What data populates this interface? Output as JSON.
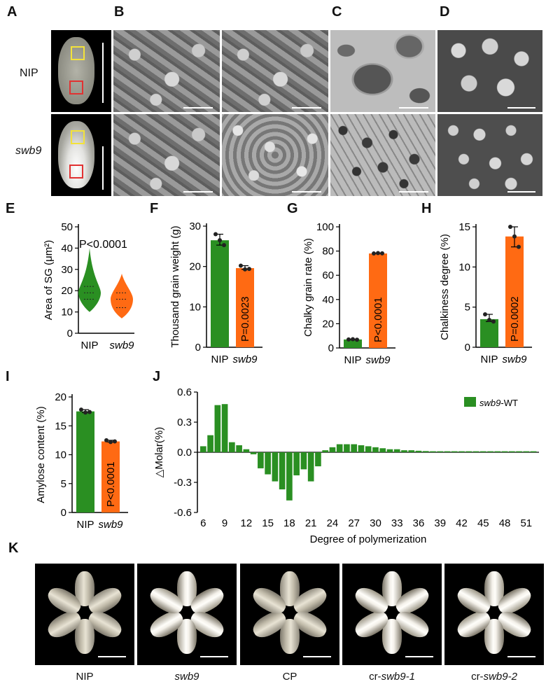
{
  "panel_labels": {
    "A": "A",
    "B": "B",
    "C": "C",
    "D": "D",
    "E": "E",
    "F": "F",
    "G": "G",
    "H": "H",
    "I": "I",
    "J": "J",
    "K": "K"
  },
  "row_labels": {
    "nip": "NIP",
    "swb9": "swb9"
  },
  "colors": {
    "nip_green": "#2a8f22",
    "swb9_orange": "#ff6a13",
    "bar_green": "#2a8f22"
  },
  "panel_E": {
    "ylabel": "Area of SG (μm²)",
    "p_text": "P<0.0001",
    "categories": [
      "NIP",
      "swb9"
    ],
    "ticks": [
      "0",
      "10",
      "20",
      "30",
      "40",
      "50"
    ]
  },
  "chart_data": [
    {
      "panel": "E",
      "type": "violin",
      "ylabel": "Area of SG (μm²)",
      "ylim": [
        0,
        50
      ],
      "categories": [
        "NIP",
        "swb9"
      ],
      "series": [
        {
          "name": "NIP",
          "median": 19,
          "q1": 16,
          "q3": 22,
          "min": 10,
          "max": 40
        },
        {
          "name": "swb9",
          "median": 16,
          "q1": 12,
          "q3": 19,
          "min": 7,
          "max": 28
        }
      ],
      "annotation": "P<0.0001"
    },
    {
      "panel": "F",
      "type": "bar",
      "ylabel": "Thousand grain weight (g)",
      "ylim": [
        0,
        30
      ],
      "categories": [
        "NIP",
        "swb9"
      ],
      "values": [
        26.5,
        19.6
      ],
      "points": [
        [
          28,
          26.5,
          25.3
        ],
        [
          20.2,
          19.3,
          19.4
        ]
      ],
      "annotation": "P=0.0023"
    },
    {
      "panel": "G",
      "type": "bar",
      "ylabel": "Chalky grain rate (%)",
      "ylim": [
        0,
        100
      ],
      "categories": [
        "NIP",
        "swb9"
      ],
      "values": [
        7,
        78
      ],
      "points": [
        [
          7,
          7.2,
          6.8
        ],
        [
          78,
          78.3,
          78.1
        ]
      ],
      "annotation": "P<0.0001"
    },
    {
      "panel": "H",
      "type": "bar",
      "ylabel": "Chalkiness degree (%)",
      "ylim": [
        0,
        15
      ],
      "categories": [
        "NIP",
        "swb9"
      ],
      "values": [
        3.5,
        13.8
      ],
      "points": [
        [
          4.1,
          3.4,
          3.2
        ],
        [
          15,
          13.8,
          12.5
        ]
      ],
      "annotation": "P=0.0002"
    },
    {
      "panel": "I",
      "type": "bar",
      "ylabel": "Amylose  content (%)",
      "ylim": [
        0,
        20
      ],
      "categories": [
        "NIP",
        "swb9"
      ],
      "values": [
        17.5,
        12.3
      ],
      "points": [
        [
          17.8,
          17.3,
          17.4
        ],
        [
          12.5,
          12.2,
          12.3
        ]
      ],
      "annotation": "P<0.0001"
    },
    {
      "panel": "J",
      "type": "bar",
      "ylabel": "△Molar(%)",
      "xlabel": "Degree of polymerization",
      "ylim": [
        -0.6,
        0.6
      ],
      "yticks": [
        "0.6",
        "0.3",
        "0.0",
        "-0.3",
        "-0.6"
      ],
      "xticks": [
        "6",
        "9",
        "12",
        "15",
        "18",
        "21",
        "24",
        "27",
        "30",
        "33",
        "36",
        "39",
        "42",
        "45",
        "48",
        "51"
      ],
      "legend": "swb9-WT",
      "x": [
        6,
        7,
        8,
        9,
        10,
        11,
        12,
        13,
        14,
        15,
        16,
        17,
        18,
        19,
        20,
        21,
        22,
        23,
        24,
        25,
        26,
        27,
        28,
        29,
        30,
        31,
        32,
        33,
        34,
        35,
        36,
        37,
        38,
        39,
        40,
        41,
        42,
        43,
        44,
        45,
        46,
        47,
        48,
        49,
        50,
        51,
        52
      ],
      "values": [
        0.06,
        0.17,
        0.47,
        0.48,
        0.1,
        0.07,
        0.03,
        -0.02,
        -0.16,
        -0.22,
        -0.29,
        -0.37,
        -0.48,
        -0.23,
        -0.17,
        -0.29,
        -0.14,
        0.02,
        0.05,
        0.08,
        0.08,
        0.08,
        0.07,
        0.06,
        0.05,
        0.04,
        0.03,
        0.03,
        0.02,
        0.02,
        0.015,
        0.012,
        0.01,
        0.01,
        0.01,
        0.01,
        0.01,
        0.01,
        0.01,
        0.01,
        0.01,
        0.01,
        0.01,
        0.01,
        0.01,
        0.01,
        0.01
      ]
    }
  ],
  "panel_F": {
    "ylabel": "Thousand grain weight (g)",
    "ticks": [
      "0",
      "10",
      "20",
      "30"
    ],
    "p_text": "P=0.0023",
    "categories": [
      "NIP",
      "swb9"
    ]
  },
  "panel_G": {
    "ylabel": "Chalky grain rate (%)",
    "ticks": [
      "0",
      "20",
      "40",
      "60",
      "80",
      "100"
    ],
    "p_text": "P<0.0001",
    "categories": [
      "NIP",
      "swb9"
    ]
  },
  "panel_H": {
    "ylabel": "Chalkiness degree (%)",
    "ticks": [
      "0",
      "5",
      "10",
      "15"
    ],
    "p_text": "P=0.0002",
    "categories": [
      "NIP",
      "swb9"
    ]
  },
  "panel_I": {
    "ylabel": "Amylose  content (%)",
    "ticks": [
      "0",
      "5",
      "10",
      "15",
      "20"
    ],
    "p_text": "P<0.0001",
    "categories": [
      "NIP",
      "swb9"
    ]
  },
  "panel_J": {
    "ylabel": "△Molar(%)",
    "xlabel": "Degree of polymerization",
    "legend": "swb9-WT"
  },
  "panel_K": {
    "captions": [
      "NIP",
      "swb9",
      "CP",
      "cr-swb9-1",
      "cr-swb9-2"
    ]
  }
}
